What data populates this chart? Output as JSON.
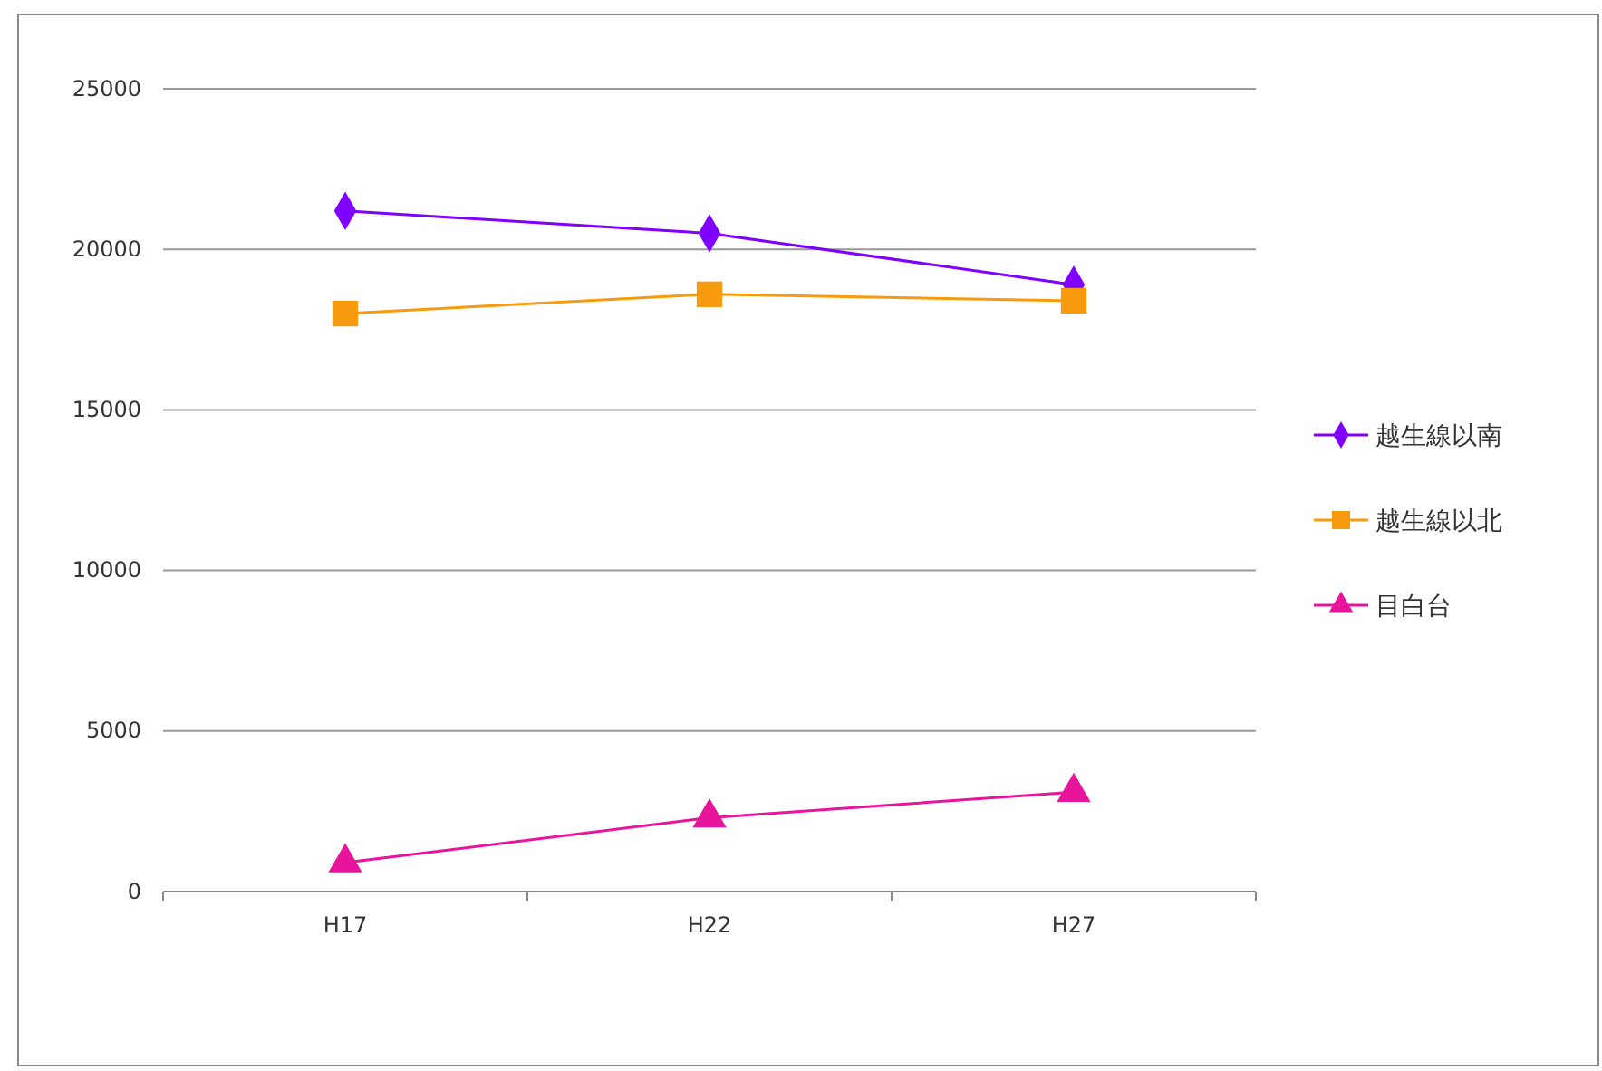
{
  "chart_data": {
    "type": "line",
    "categories": [
      "H17",
      "H22",
      "H27"
    ],
    "series": [
      {
        "name": "越生線以南",
        "color": "#7f00ff",
        "marker": "diamond",
        "values": [
          21200,
          20500,
          18900
        ]
      },
      {
        "name": "越生線以北",
        "color": "#f79a0e",
        "marker": "square",
        "values": [
          18000,
          18600,
          18400
        ]
      },
      {
        "name": "目白台",
        "color": "#e8159c",
        "marker": "triangle",
        "values": [
          900,
          2300,
          3100
        ]
      }
    ],
    "ylim": [
      0,
      25000
    ],
    "yticks": [
      0,
      5000,
      10000,
      15000,
      20000,
      25000
    ],
    "grid": "y",
    "legend": "right"
  }
}
